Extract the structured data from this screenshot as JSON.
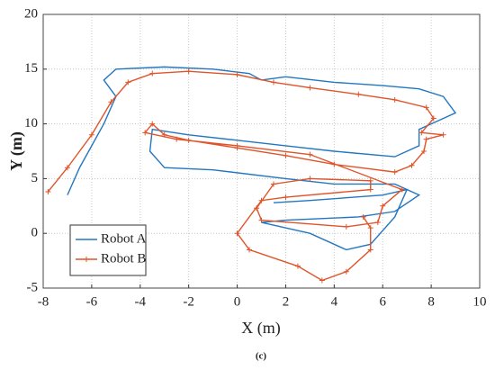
{
  "chart_data": {
    "type": "line",
    "subtitle": "(c)",
    "x_label": "X (m)",
    "y_label": "Y (m)",
    "xlim": [
      -8,
      10
    ],
    "xticks": [
      -8,
      -6,
      -4,
      -2,
      0,
      2,
      4,
      6,
      8,
      10
    ],
    "ylim": [
      -5,
      20
    ],
    "yticks": [
      -5,
      0,
      5,
      10,
      15,
      20
    ],
    "grid": true,
    "legend": "lower left",
    "series": [
      {
        "name": "Robot A",
        "color": "#2277c0",
        "marker": "none",
        "x": [
          -7,
          -6.5,
          -5.5,
          -5,
          -5.5,
          -5,
          -3,
          -1,
          0.5,
          1,
          2,
          4,
          6,
          7.5,
          8.5,
          9,
          8,
          7.5,
          7.5,
          6.5,
          4,
          2,
          0,
          -2,
          -3.5,
          -3.6,
          -3,
          -1,
          2,
          4,
          6.5,
          7.5,
          6.5,
          5,
          2,
          1,
          3,
          4.5,
          5.5,
          6.5,
          7,
          6,
          3,
          1.5
        ],
        "values": [
          3.5,
          6,
          10,
          12.5,
          14,
          15,
          15.2,
          15,
          14.6,
          14,
          14.3,
          13.8,
          13.5,
          13.2,
          12.5,
          11,
          10,
          9.5,
          8,
          7,
          7.5,
          8,
          8.5,
          9,
          9.5,
          7.5,
          6,
          5.8,
          5,
          4.5,
          4.5,
          3.5,
          2,
          1.5,
          1.2,
          1,
          0,
          -1.5,
          -1,
          1.5,
          4,
          3.5,
          3,
          2.8
        ]
      },
      {
        "name": "Robot B",
        "color": "#e0542a",
        "marker": "+",
        "x": [
          -7.8,
          -7,
          -6,
          -5.2,
          -4.5,
          -3.5,
          -2,
          0,
          1.5,
          3,
          5,
          6.5,
          7.8,
          8.1,
          7.6,
          8.5,
          7.8,
          7.7,
          7.2,
          6.5,
          4,
          2,
          0,
          -2,
          -3,
          -3.5,
          -3.8,
          -2.5,
          0,
          3,
          6.8,
          6,
          5.8,
          4.5,
          1,
          0.8,
          1.5,
          3,
          5.5,
          5.5,
          2,
          1,
          0,
          0.5,
          2.5,
          3.5,
          4.5,
          5.5,
          5.5,
          5.2
        ],
        "values": [
          3.8,
          6,
          9,
          12,
          13.8,
          14.6,
          14.8,
          14.5,
          13.8,
          13.3,
          12.7,
          12.2,
          11.5,
          10.5,
          9.2,
          9,
          8.6,
          7.5,
          6.2,
          5.6,
          6.3,
          7.1,
          7.8,
          8.5,
          9,
          10,
          9.2,
          8.6,
          8,
          7.2,
          4,
          2.5,
          1,
          0.6,
          1.2,
          2.3,
          4.5,
          5,
          4.8,
          4,
          3.3,
          3,
          0,
          -1.5,
          -3,
          -4.3,
          -3.5,
          -1.5,
          0.5,
          1.5
        ]
      }
    ]
  }
}
